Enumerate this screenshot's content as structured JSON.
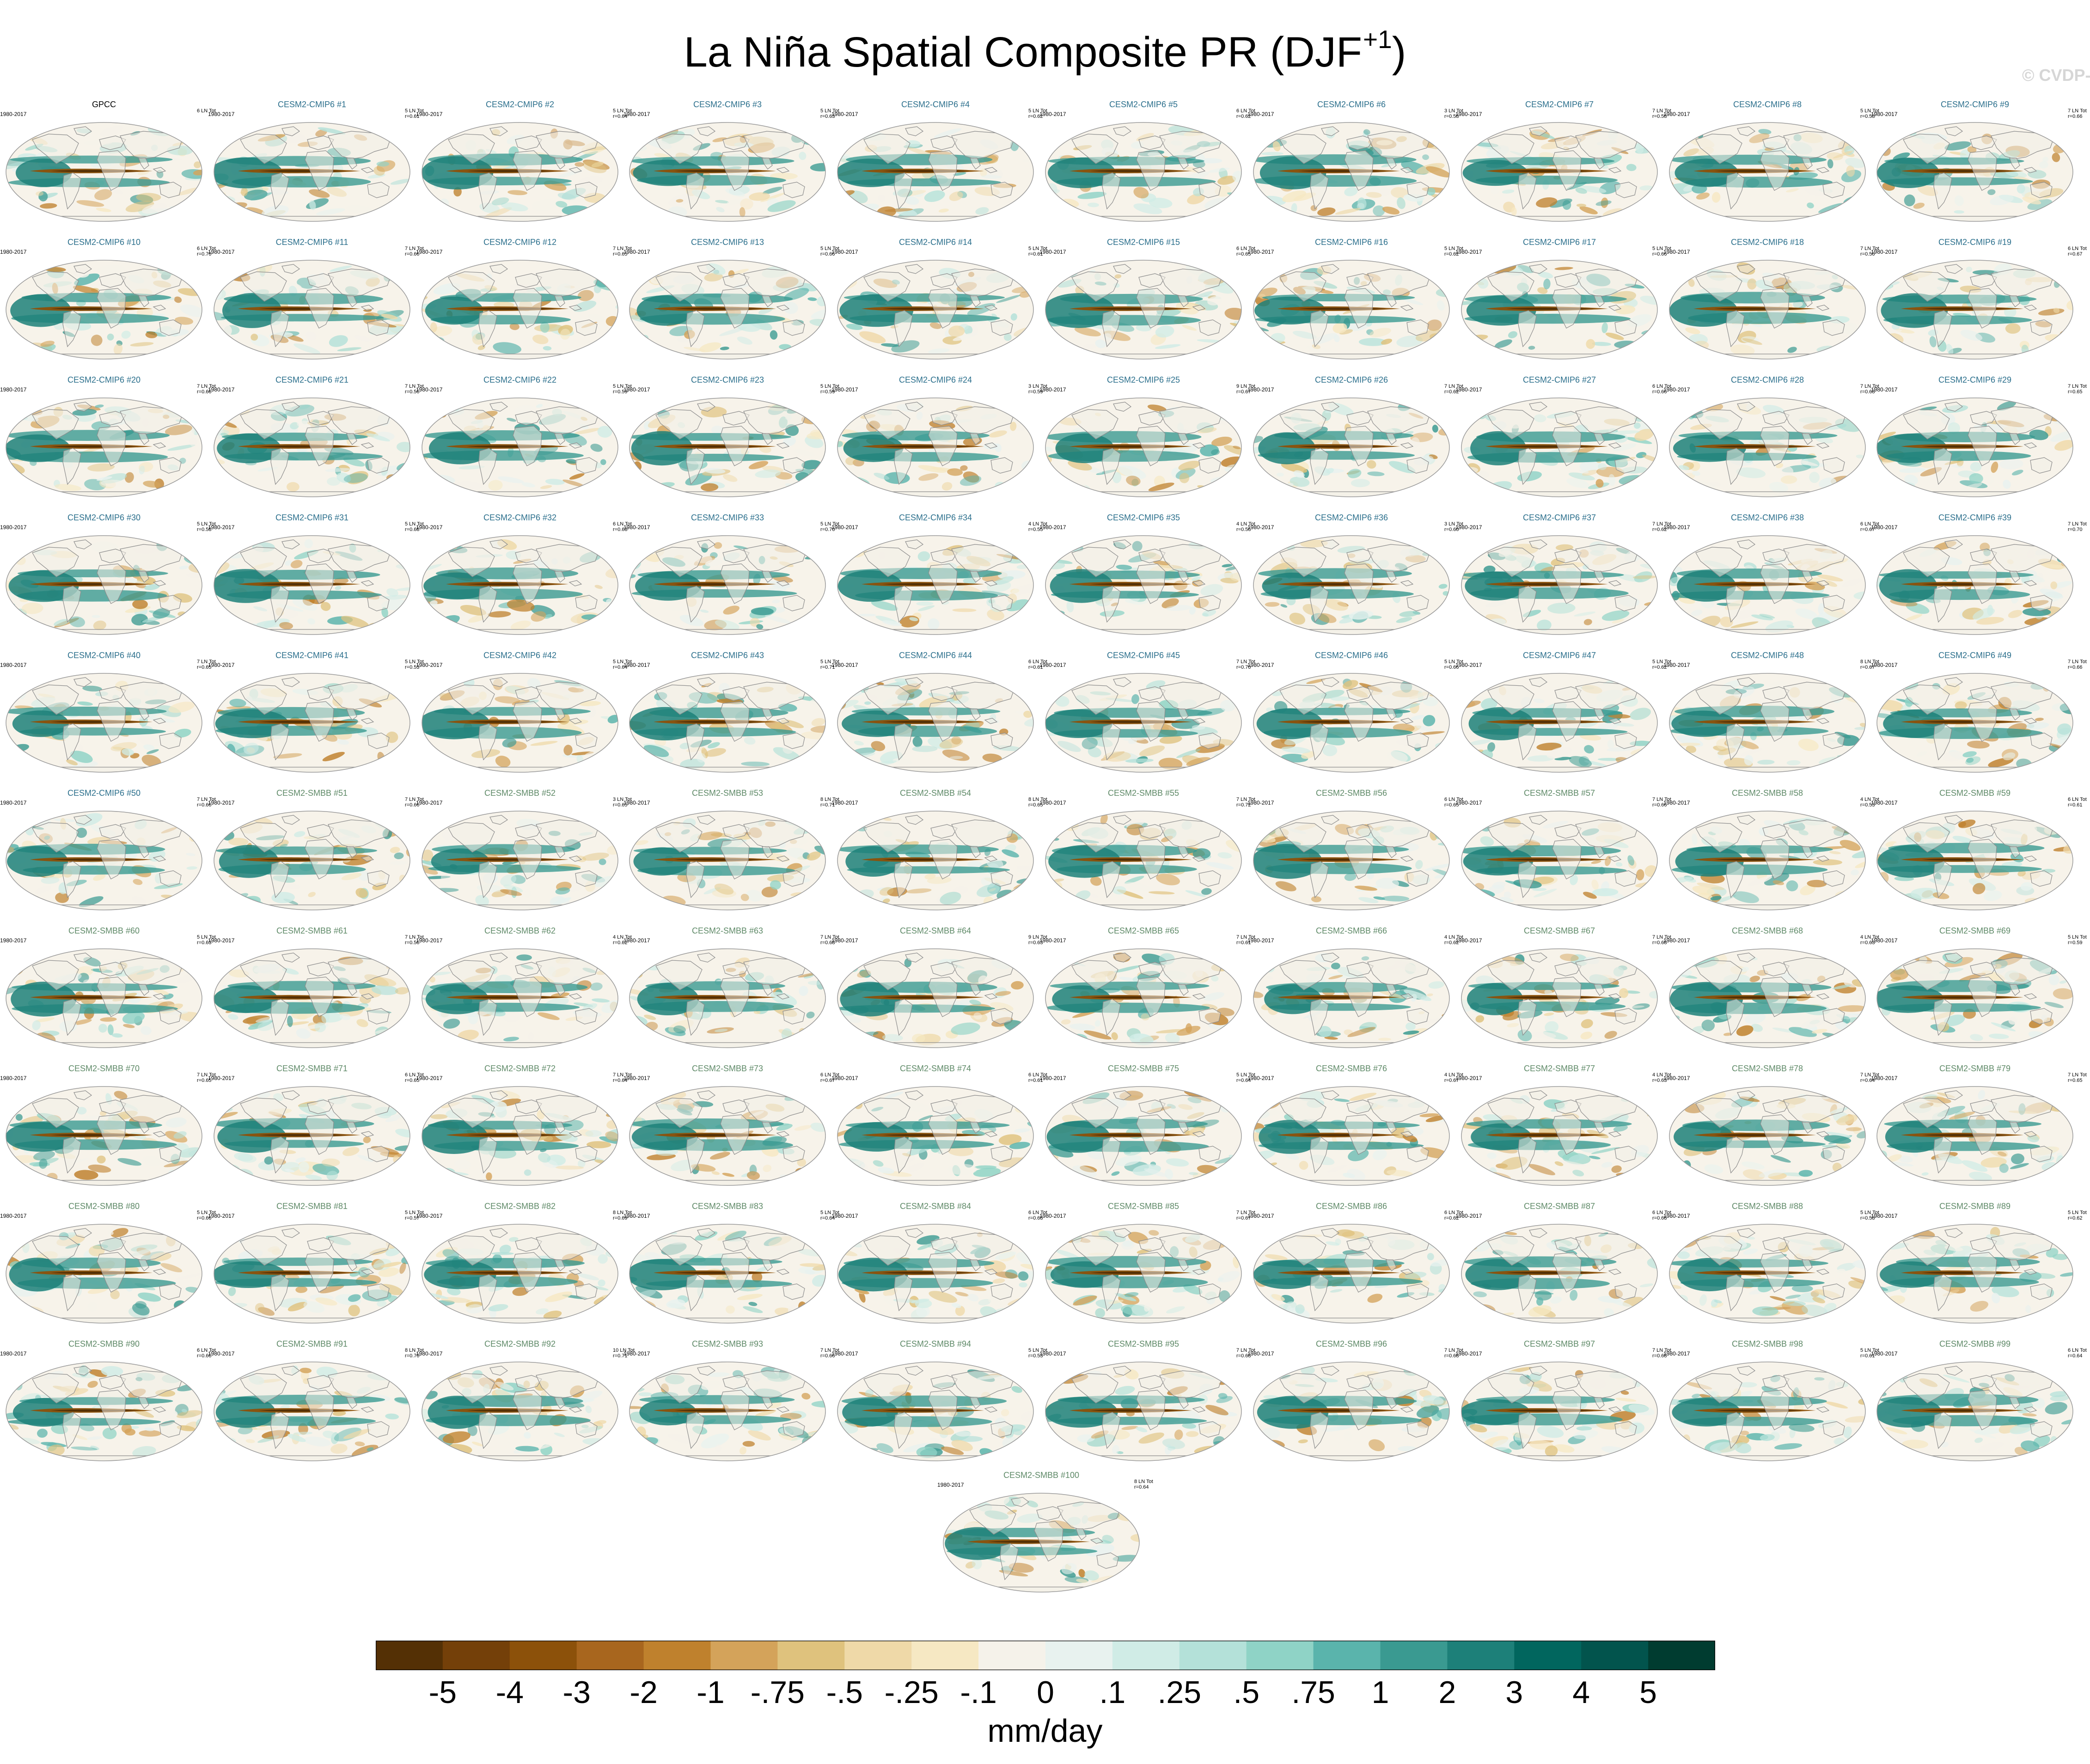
{
  "title": {
    "main": "La Niña Spatial Composite PR (DJF",
    "sup": "+1",
    "close": ")"
  },
  "watermark": "© CVDP-LE",
  "colors": {
    "cmip6_title": "#2b6f8c",
    "smbb_title": "#5f8a68",
    "obs_title": "#000000",
    "land": "#f3efe6",
    "coast": "#8c8c8c",
    "map_frame": "#9a9a9a"
  },
  "panels": [
    {
      "title": "GPCC",
      "years": "1980-2017",
      "count": "6 LN Tot",
      "corr": ""
    },
    {
      "title": "CESM2-CMIP6 #1",
      "years": "1980-2017",
      "count": "5 LN Tot",
      "corr": "r=0.61"
    },
    {
      "title": "CESM2-CMIP6 #2",
      "years": "1980-2017",
      "count": "5 LN Tot",
      "corr": "r=0.64"
    },
    {
      "title": "CESM2-CMIP6 #3",
      "years": "1980-2017",
      "count": "5 LN Tot",
      "corr": "r=0.63"
    },
    {
      "title": "CESM2-CMIP6 #4",
      "years": "1980-2017",
      "count": "5 LN Tot",
      "corr": "r=0.62"
    },
    {
      "title": "CESM2-CMIP6 #5",
      "years": "1980-2017",
      "count": "6 LN Tot",
      "corr": "r=0.62"
    },
    {
      "title": "CESM2-CMIP6 #6",
      "years": "1980-2017",
      "count": "3 LN Tot",
      "corr": "r=0.58"
    },
    {
      "title": "CESM2-CMIP6 #7",
      "years": "1980-2017",
      "count": "7 LN Tot",
      "corr": "r=0.58"
    },
    {
      "title": "CESM2-CMIP6 #8",
      "years": "1980-2017",
      "count": "5 LN Tot",
      "corr": "r=0.58"
    },
    {
      "title": "CESM2-CMIP6 #9",
      "years": "1980-2017",
      "count": "7 LN Tot",
      "corr": "r=0.66"
    },
    {
      "title": "CESM2-CMIP6 #10",
      "years": "1980-2017",
      "count": "6 LN Tot",
      "corr": "r=0.70"
    },
    {
      "title": "CESM2-CMIP6 #11",
      "years": "1980-2017",
      "count": "7 LN Tot",
      "corr": "r=0.66"
    },
    {
      "title": "CESM2-CMIP6 #12",
      "years": "1980-2017",
      "count": "7 LN Tot",
      "corr": "r=0.65"
    },
    {
      "title": "CESM2-CMIP6 #13",
      "years": "1980-2017",
      "count": "5 LN Tot",
      "corr": "r=0.66"
    },
    {
      "title": "CESM2-CMIP6 #14",
      "years": "1980-2017",
      "count": "5 LN Tot",
      "corr": "r=0.61"
    },
    {
      "title": "CESM2-CMIP6 #15",
      "years": "1980-2017",
      "count": "6 LN Tot",
      "corr": "r=0.65"
    },
    {
      "title": "CESM2-CMIP6 #16",
      "years": "1980-2017",
      "count": "5 LN Tot",
      "corr": "r=0.62"
    },
    {
      "title": "CESM2-CMIP6 #17",
      "years": "1980-2017",
      "count": "5 LN Tot",
      "corr": "r=0.66"
    },
    {
      "title": "CESM2-CMIP6 #18",
      "years": "1980-2017",
      "count": "7 LN Tot",
      "corr": "r=0.56"
    },
    {
      "title": "CESM2-CMIP6 #19",
      "years": "1980-2017",
      "count": "6 LN Tot",
      "corr": "r=0.67"
    },
    {
      "title": "CESM2-CMIP6 #20",
      "years": "1980-2017",
      "count": "7 LN Tot",
      "corr": "r=0.66"
    },
    {
      "title": "CESM2-CMIP6 #21",
      "years": "1980-2017",
      "count": "7 LN Tot",
      "corr": "r=0.56"
    },
    {
      "title": "CESM2-CMIP6 #22",
      "years": "1980-2017",
      "count": "5 LN Tot",
      "corr": "r=0.59"
    },
    {
      "title": "CESM2-CMIP6 #23",
      "years": "1980-2017",
      "count": "5 LN Tot",
      "corr": "r=0.59"
    },
    {
      "title": "CESM2-CMIP6 #24",
      "years": "1980-2017",
      "count": "3 LN Tot",
      "corr": "r=0.59"
    },
    {
      "title": "CESM2-CMIP6 #25",
      "years": "1980-2017",
      "count": "9 LN Tot",
      "corr": "r=0.67"
    },
    {
      "title": "CESM2-CMIP6 #26",
      "years": "1980-2017",
      "count": "7 LN Tot",
      "corr": "r=0.62"
    },
    {
      "title": "CESM2-CMIP6 #27",
      "years": "1980-2017",
      "count": "6 LN Tot",
      "corr": "r=0.66"
    },
    {
      "title": "CESM2-CMIP6 #28",
      "years": "1980-2017",
      "count": "7 LN Tot",
      "corr": "r=0.68"
    },
    {
      "title": "CESM2-CMIP6 #29",
      "years": "1980-2017",
      "count": "7 LN Tot",
      "corr": "r=0.65"
    },
    {
      "title": "CESM2-CMIP6 #30",
      "years": "1980-2017",
      "count": "5 LN Tot",
      "corr": "r=0.58"
    },
    {
      "title": "CESM2-CMIP6 #31",
      "years": "1980-2017",
      "count": "5 LN Tot",
      "corr": "r=0.68"
    },
    {
      "title": "CESM2-CMIP6 #32",
      "years": "1980-2017",
      "count": "6 LN Tot",
      "corr": "r=0.68"
    },
    {
      "title": "CESM2-CMIP6 #33",
      "years": "1980-2017",
      "count": "5 LN Tot",
      "corr": "r=0.70"
    },
    {
      "title": "CESM2-CMIP6 #34",
      "years": "1980-2017",
      "count": "4 LN Tot",
      "corr": "r=0.55"
    },
    {
      "title": "CESM2-CMIP6 #35",
      "years": "1980-2017",
      "count": "4 LN Tot",
      "corr": "r=0.56"
    },
    {
      "title": "CESM2-CMIP6 #36",
      "years": "1980-2017",
      "count": "3 LN Tot",
      "corr": "r=0.60"
    },
    {
      "title": "CESM2-CMIP6 #37",
      "years": "1980-2017",
      "count": "7 LN Tot",
      "corr": "r=0.62"
    },
    {
      "title": "CESM2-CMIP6 #38",
      "years": "1980-2017",
      "count": "6 LN Tot",
      "corr": "r=0.67"
    },
    {
      "title": "CESM2-CMIP6 #39",
      "years": "1980-2017",
      "count": "7 LN Tot",
      "corr": "r=0.70"
    },
    {
      "title": "CESM2-CMIP6 #40",
      "years": "1980-2017",
      "count": "7 LN Tot",
      "corr": "r=0.65"
    },
    {
      "title": "CESM2-CMIP6 #41",
      "years": "1980-2017",
      "count": "5 LN Tot",
      "corr": "r=0.53"
    },
    {
      "title": "CESM2-CMIP6 #42",
      "years": "1980-2017",
      "count": "5 LN Tot",
      "corr": "r=0.64"
    },
    {
      "title": "CESM2-CMIP6 #43",
      "years": "1980-2017",
      "count": "5 LN Tot",
      "corr": "r=0.71"
    },
    {
      "title": "CESM2-CMIP6 #44",
      "years": "1980-2017",
      "count": "6 LN Tot",
      "corr": "r=0.61"
    },
    {
      "title": "CESM2-CMIP6 #45",
      "years": "1980-2017",
      "count": "7 LN Tot",
      "corr": "r=0.70"
    },
    {
      "title": "CESM2-CMIP6 #46",
      "years": "1980-2017",
      "count": "5 LN Tot",
      "corr": "r=0.66"
    },
    {
      "title": "CESM2-CMIP6 #47",
      "years": "1980-2017",
      "count": "5 LN Tot",
      "corr": "r=0.62"
    },
    {
      "title": "CESM2-CMIP6 #48",
      "years": "1980-2017",
      "count": "8 LN Tot",
      "corr": "r=0.67"
    },
    {
      "title": "CESM2-CMIP6 #49",
      "years": "1980-2017",
      "count": "7 LN Tot",
      "corr": "r=0.66"
    },
    {
      "title": "CESM2-CMIP6 #50",
      "years": "1980-2017",
      "count": "7 LN Tot",
      "corr": "r=0.66"
    },
    {
      "title": "CESM2-SMBB #51",
      "years": "1980-2017",
      "count": "7 LN Tot",
      "corr": "r=0.66"
    },
    {
      "title": "CESM2-SMBB #52",
      "years": "1980-2017",
      "count": "3 LN Tot",
      "corr": "r=0.65"
    },
    {
      "title": "CESM2-SMBB #53",
      "years": "1980-2017",
      "count": "8 LN Tot",
      "corr": "r=0.71"
    },
    {
      "title": "CESM2-SMBB #54",
      "years": "1980-2017",
      "count": "8 LN Tot",
      "corr": "r=0.65"
    },
    {
      "title": "CESM2-SMBB #55",
      "years": "1980-2017",
      "count": "7 LN Tot",
      "corr": "r=0.72"
    },
    {
      "title": "CESM2-SMBB #56",
      "years": "1980-2017",
      "count": "6 LN Tot",
      "corr": "r=0.65"
    },
    {
      "title": "CESM2-SMBB #57",
      "years": "1980-2017",
      "count": "7 LN Tot",
      "corr": "r=0.66"
    },
    {
      "title": "CESM2-SMBB #58",
      "years": "1980-2017",
      "count": "4 LN Tot",
      "corr": "r=0.53"
    },
    {
      "title": "CESM2-SMBB #59",
      "years": "1980-2017",
      "count": "6 LN Tot",
      "corr": "r=0.61"
    },
    {
      "title": "CESM2-SMBB #60",
      "years": "1980-2017",
      "count": "5 LN Tot",
      "corr": "r=0.63"
    },
    {
      "title": "CESM2-SMBB #61",
      "years": "1980-2017",
      "count": "7 LN Tot",
      "corr": "r=0.56"
    },
    {
      "title": "CESM2-SMBB #62",
      "years": "1980-2017",
      "count": "4 LN Tot",
      "corr": "r=0.62"
    },
    {
      "title": "CESM2-SMBB #63",
      "years": "1980-2017",
      "count": "7 LN Tot",
      "corr": "r=0.68"
    },
    {
      "title": "CESM2-SMBB #64",
      "years": "1980-2017",
      "count": "9 LN Tot",
      "corr": "r=0.63"
    },
    {
      "title": "CESM2-SMBB #65",
      "years": "1980-2017",
      "count": "7 LN Tot",
      "corr": "r=0.61"
    },
    {
      "title": "CESM2-SMBB #66",
      "years": "1980-2017",
      "count": "4 LN Tot",
      "corr": "r=0.62"
    },
    {
      "title": "CESM2-SMBB #67",
      "years": "1980-2017",
      "count": "7 LN Tot",
      "corr": "r=0.68"
    },
    {
      "title": "CESM2-SMBB #68",
      "years": "1980-2017",
      "count": "4 LN Tot",
      "corr": "r=0.63"
    },
    {
      "title": "CESM2-SMBB #69",
      "years": "1980-2017",
      "count": "5 LN Tot",
      "corr": "r=0.59"
    },
    {
      "title": "CESM2-SMBB #70",
      "years": "1980-2017",
      "count": "7 LN Tot",
      "corr": "r=0.65"
    },
    {
      "title": "CESM2-SMBB #71",
      "years": "1980-2017",
      "count": "6 LN Tot",
      "corr": "r=0.65"
    },
    {
      "title": "CESM2-SMBB #72",
      "years": "1980-2017",
      "count": "7 LN Tot",
      "corr": "r=0.64"
    },
    {
      "title": "CESM2-SMBB #73",
      "years": "1980-2017",
      "count": "6 LN Tot",
      "corr": "r=0.67"
    },
    {
      "title": "CESM2-SMBB #74",
      "years": "1980-2017",
      "count": "6 LN Tot",
      "corr": "r=0.61"
    },
    {
      "title": "CESM2-SMBB #75",
      "years": "1980-2017",
      "count": "5 LN Tot",
      "corr": "r=0.64"
    },
    {
      "title": "CESM2-SMBB #76",
      "years": "1980-2017",
      "count": "4 LN Tot",
      "corr": "r=0.67"
    },
    {
      "title": "CESM2-SMBB #77",
      "years": "1980-2017",
      "count": "4 LN Tot",
      "corr": "r=0.63"
    },
    {
      "title": "CESM2-SMBB #78",
      "years": "1980-2017",
      "count": "7 LN Tot",
      "corr": "r=0.64"
    },
    {
      "title": "CESM2-SMBB #79",
      "years": "1980-2017",
      "count": "7 LN Tot",
      "corr": "r=0.65"
    },
    {
      "title": "CESM2-SMBB #80",
      "years": "1980-2017",
      "count": "5 LN Tot",
      "corr": "r=0.66"
    },
    {
      "title": "CESM2-SMBB #81",
      "years": "1980-2017",
      "count": "5 LN Tot",
      "corr": "r=0.57"
    },
    {
      "title": "CESM2-SMBB #82",
      "years": "1980-2017",
      "count": "8 LN Tot",
      "corr": "r=0.69"
    },
    {
      "title": "CESM2-SMBB #83",
      "years": "1980-2017",
      "count": "5 LN Tot",
      "corr": "r=0.64"
    },
    {
      "title": "CESM2-SMBB #84",
      "years": "1980-2017",
      "count": "6 LN Tot",
      "corr": "r=0.68"
    },
    {
      "title": "CESM2-SMBB #85",
      "years": "1980-2017",
      "count": "7 LN Tot",
      "corr": "r=0.67"
    },
    {
      "title": "CESM2-SMBB #86",
      "years": "1980-2017",
      "count": "6 LN Tot",
      "corr": "r=0.62"
    },
    {
      "title": "CESM2-SMBB #87",
      "years": "1980-2017",
      "count": "6 LN Tot",
      "corr": "r=0.68"
    },
    {
      "title": "CESM2-SMBB #88",
      "years": "1980-2017",
      "count": "5 LN Tot",
      "corr": "r=0.58"
    },
    {
      "title": "CESM2-SMBB #89",
      "years": "1980-2017",
      "count": "5 LN Tot",
      "corr": "r=0.62"
    },
    {
      "title": "CESM2-SMBB #90",
      "years": "1980-2017",
      "count": "6 LN Tot",
      "corr": "r=0.66"
    },
    {
      "title": "CESM2-SMBB #91",
      "years": "1980-2017",
      "count": "8 LN Tot",
      "corr": "r=0.70"
    },
    {
      "title": "CESM2-SMBB #92",
      "years": "1980-2017",
      "count": "10 LN Tot",
      "corr": "r=0.71"
    },
    {
      "title": "CESM2-SMBB #93",
      "years": "1980-2017",
      "count": "7 LN Tot",
      "corr": "r=0.66"
    },
    {
      "title": "CESM2-SMBB #94",
      "years": "1980-2017",
      "count": "5 LN Tot",
      "corr": "r=0.53"
    },
    {
      "title": "CESM2-SMBB #95",
      "years": "1980-2017",
      "count": "7 LN Tot",
      "corr": "r=0.68"
    },
    {
      "title": "CESM2-SMBB #96",
      "years": "1980-2017",
      "count": "7 LN Tot",
      "corr": "r=0.68"
    },
    {
      "title": "CESM2-SMBB #97",
      "years": "1980-2017",
      "count": "7 LN Tot",
      "corr": "r=0.68"
    },
    {
      "title": "CESM2-SMBB #98",
      "years": "1980-2017",
      "count": "5 LN Tot",
      "corr": "r=0.61"
    },
    {
      "title": "CESM2-SMBB #99",
      "years": "1980-2017",
      "count": "6 LN Tot",
      "corr": "r=0.64"
    },
    {
      "title": "CESM2-SMBB #100",
      "years": "1980-2017",
      "count": "8 LN Tot",
      "corr": "r=0.64"
    }
  ],
  "chart_data": {
    "type": "heatmap",
    "title": "La Niña Spatial Composite PR (DJF+1)",
    "panel_count": 101,
    "grid": {
      "columns": 10,
      "full_rows": 10,
      "last_row_panels": 1
    },
    "projection": "global ellipse (Robinson-like)",
    "colorbar": {
      "levels": [
        "-5",
        "-4",
        "-3",
        "-2",
        "-1",
        "-.75",
        "-.5",
        "-.25",
        "-.1",
        "0",
        ".1",
        ".25",
        ".5",
        ".75",
        "1",
        "2",
        "3",
        "4",
        "5"
      ],
      "colors": [
        "#543005",
        "#744009",
        "#8c510a",
        "#a8661e",
        "#bf812d",
        "#d4a35a",
        "#dfc27d",
        "#efd9a8",
        "#f6e8c3",
        "#f5f2ea",
        "#e8f2ef",
        "#d0ece6",
        "#b4e1d9",
        "#8fd3c6",
        "#5ab4ac",
        "#3a9a91",
        "#1d8079",
        "#01665e",
        "#02544d",
        "#003c30"
      ],
      "units": "mm/day",
      "placement": "bottom"
    },
    "pattern_notes": "dry (brown) tongue along the equatorial central Pacific, wet (teal) anomalies over the Maritime Continent and western Pacific"
  }
}
